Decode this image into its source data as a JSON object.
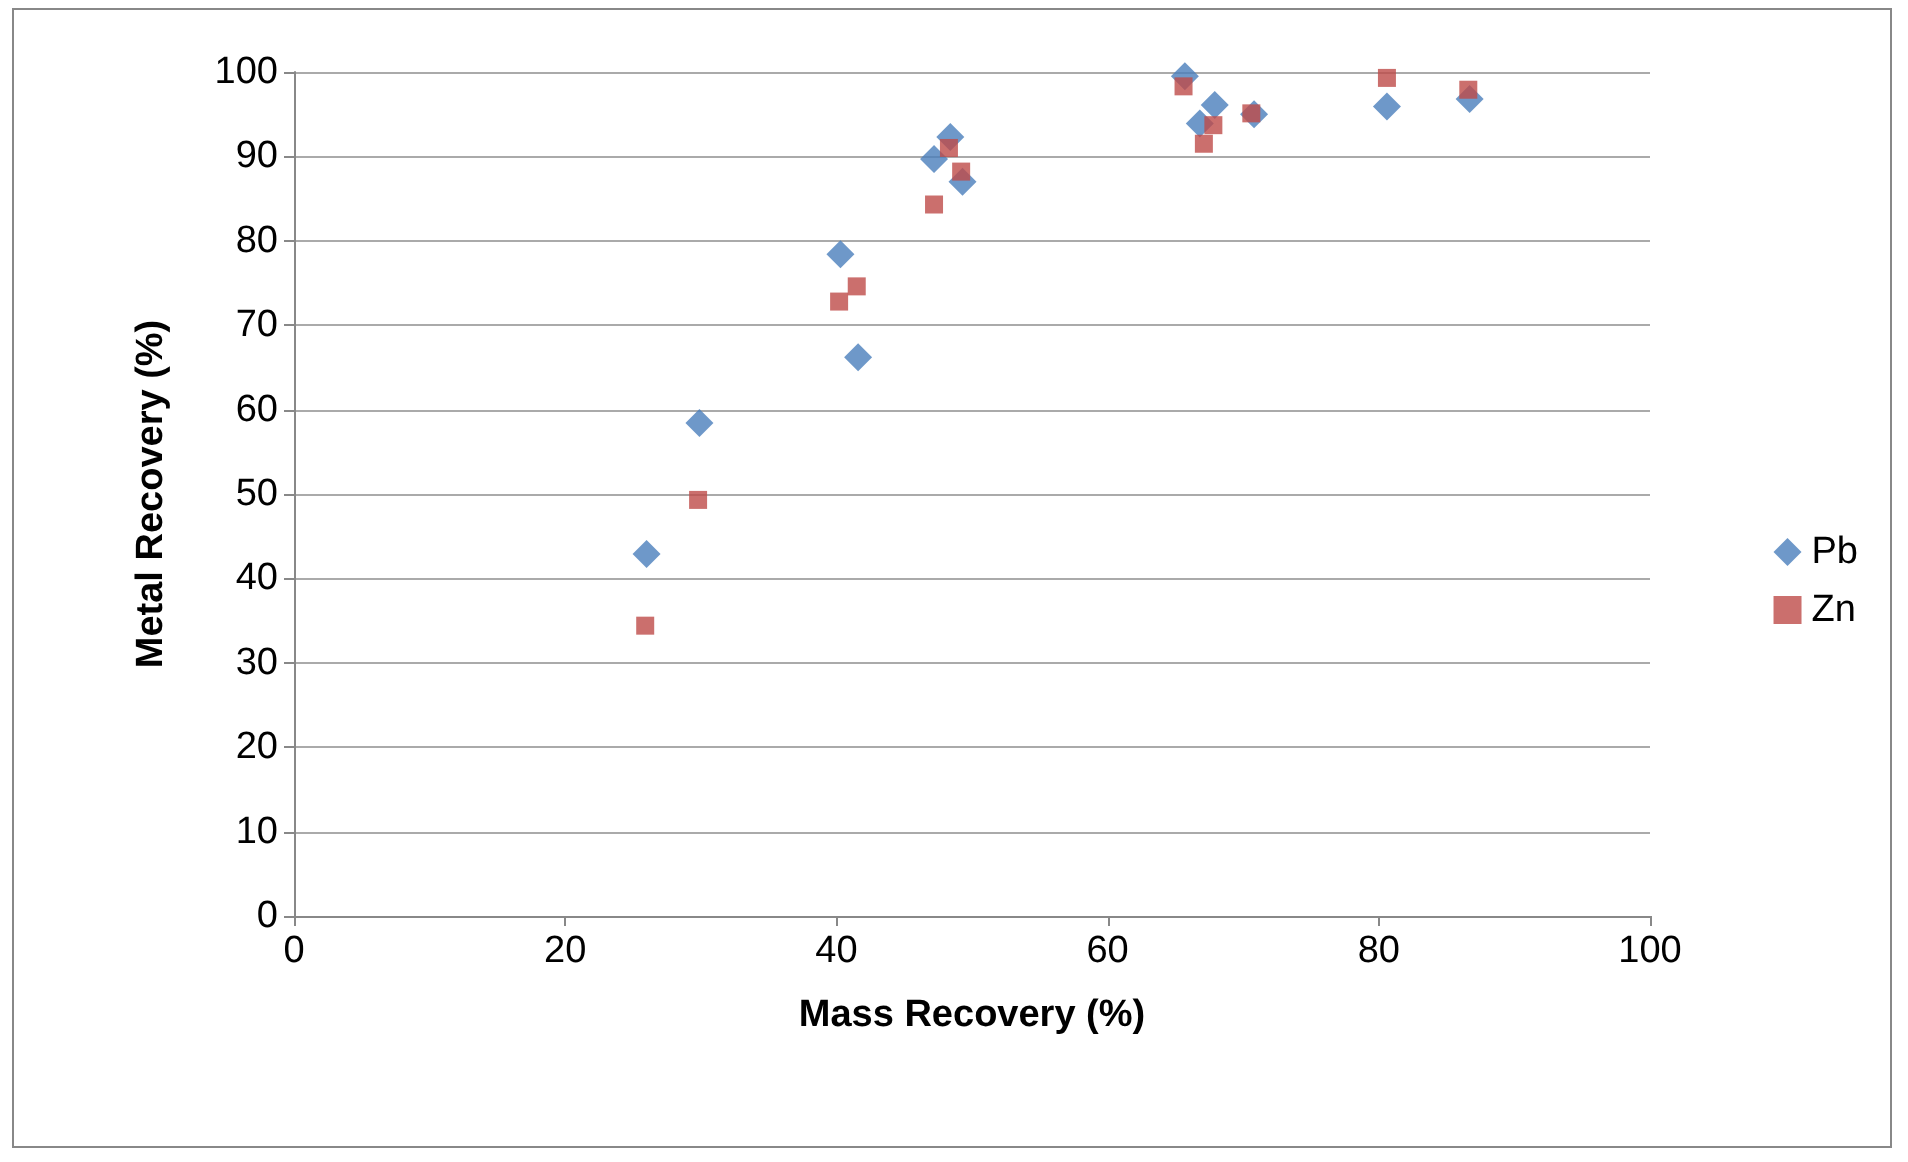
{
  "chart_data": {
    "type": "scatter",
    "xlabel": "Mass Recovery (%)",
    "ylabel": "Metal Recovery (%)",
    "xlim": [
      0,
      100
    ],
    "xticks": [
      0,
      20,
      40,
      60,
      80,
      100
    ],
    "ylim": [
      0,
      100
    ],
    "yticks": [
      0,
      10,
      20,
      30,
      40,
      50,
      60,
      70,
      80,
      90,
      100
    ],
    "grid": "y",
    "legend": "right",
    "series": [
      {
        "name": "Pb",
        "color": "#4a7ebb",
        "marker": "diamond",
        "x": [
          26.0,
          29.9,
          40.3,
          41.6,
          47.2,
          48.4,
          49.3,
          65.7,
          66.8,
          67.9,
          70.8,
          80.6,
          86.7
        ],
        "values": [
          42.9,
          58.4,
          78.4,
          66.2,
          89.7,
          92.3,
          87.0,
          99.5,
          93.9,
          96.1,
          95.0,
          95.9,
          96.8
        ]
      },
      {
        "name": "Zn",
        "color": "#be4b48",
        "marker": "square",
        "x": [
          25.9,
          29.8,
          40.2,
          41.5,
          47.2,
          48.3,
          49.2,
          65.6,
          67.1,
          67.8,
          70.6,
          80.6,
          86.6
        ],
        "values": [
          34.4,
          49.3,
          72.8,
          74.6,
          84.3,
          91.0,
          88.2,
          98.3,
          91.5,
          93.7,
          95.1,
          99.3,
          97.9
        ]
      }
    ]
  }
}
